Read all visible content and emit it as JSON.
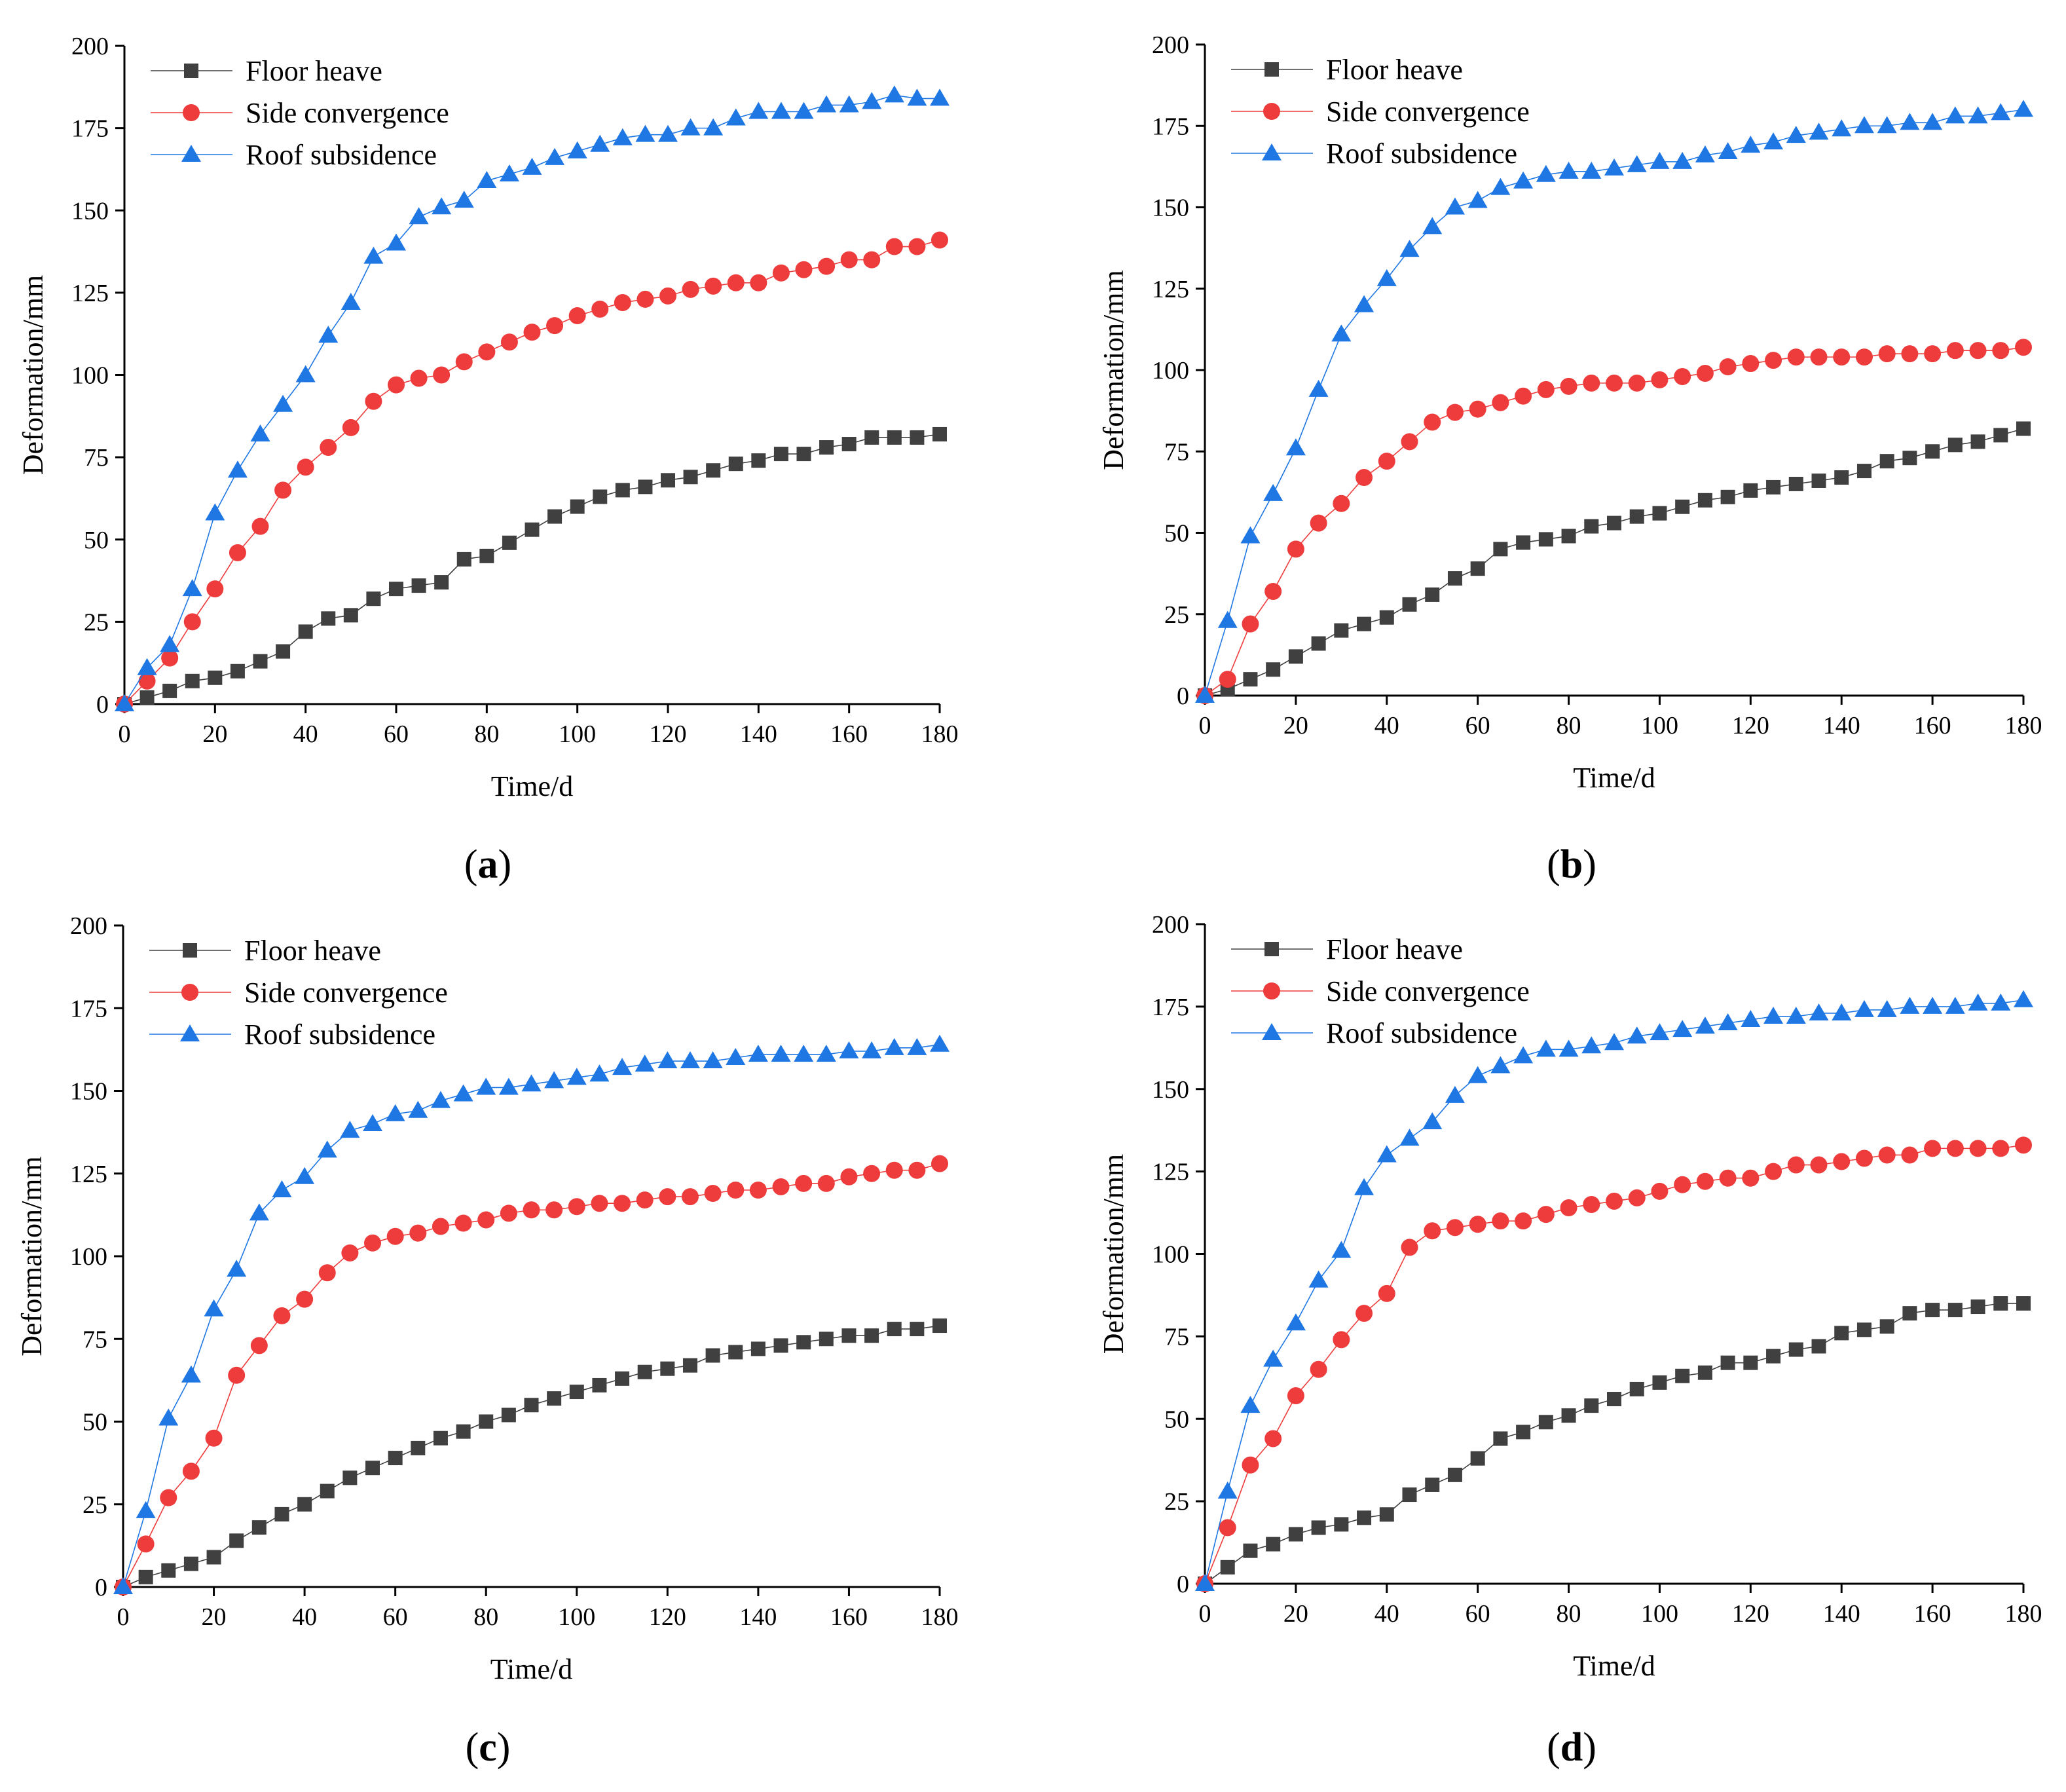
{
  "chart_data": [
    {
      "type": "line",
      "panel_label": "a",
      "xlabel": "Time/d",
      "ylabel": "Deformation/mm",
      "xlim": [
        0,
        180
      ],
      "ylim": [
        0,
        200
      ],
      "xticks": [
        0,
        20,
        40,
        60,
        80,
        100,
        120,
        140,
        160,
        180
      ],
      "yticks": [
        0,
        25,
        50,
        75,
        100,
        125,
        150,
        175,
        200
      ],
      "legend_position": "top-left",
      "x": [
        0,
        5,
        10,
        15,
        20,
        25,
        30,
        35,
        40,
        45,
        50,
        55,
        60,
        65,
        70,
        75,
        80,
        85,
        90,
        95,
        100,
        105,
        110,
        115,
        120,
        125,
        130,
        135,
        140,
        145,
        150,
        155,
        160,
        165,
        170,
        175,
        180
      ],
      "series": [
        {
          "name": "Floor heave",
          "marker": "square",
          "color": "#404040",
          "values": [
            0,
            2,
            4,
            7,
            8,
            10,
            13,
            16,
            22,
            26,
            27,
            32,
            35,
            36,
            37,
            44,
            45,
            49,
            53,
            57,
            60,
            63,
            65,
            66,
            68,
            69,
            71,
            73,
            74,
            76,
            76,
            78,
            79,
            81,
            81,
            81,
            82
          ]
        },
        {
          "name": "Side convergence",
          "marker": "circle",
          "color": "#ee3b3b",
          "values": [
            0,
            7,
            14,
            25,
            35,
            46,
            54,
            65,
            72,
            78,
            84,
            92,
            97,
            99,
            100,
            104,
            107,
            110,
            113,
            115,
            118,
            120,
            122,
            123,
            124,
            126,
            127,
            128,
            128,
            131,
            132,
            133,
            135,
            135,
            139,
            139,
            141
          ]
        },
        {
          "name": "Roof subsidence",
          "marker": "triangle",
          "color": "#1f77e4",
          "values": [
            0,
            11,
            18,
            35,
            58,
            71,
            82,
            91,
            100,
            112,
            122,
            136,
            140,
            148,
            151,
            153,
            159,
            161,
            163,
            166,
            168,
            170,
            172,
            173,
            173,
            175,
            175,
            178,
            180,
            180,
            180,
            182,
            182,
            183,
            185,
            184,
            184
          ]
        }
      ]
    },
    {
      "type": "line",
      "panel_label": "b",
      "xlabel": "Time/d",
      "ylabel": "Deformation/mm",
      "xlim": [
        0,
        180
      ],
      "ylim": [
        0,
        200
      ],
      "xticks": [
        0,
        20,
        40,
        60,
        80,
        100,
        120,
        140,
        160,
        180
      ],
      "yticks": [
        0,
        25,
        50,
        75,
        100,
        125,
        150,
        175,
        200
      ],
      "legend_position": "top-left",
      "x": [
        0,
        5,
        10,
        15,
        20,
        25,
        30,
        35,
        40,
        45,
        50,
        55,
        60,
        65,
        70,
        75,
        80,
        85,
        90,
        95,
        100,
        105,
        110,
        115,
        120,
        125,
        130,
        135,
        140,
        145,
        150,
        155,
        160,
        165,
        170,
        175,
        180
      ],
      "series": [
        {
          "name": "Floor heave",
          "marker": "square",
          "color": "#404040",
          "values": [
            0,
            2,
            5,
            8,
            12,
            16,
            20,
            22,
            24,
            28,
            31,
            36,
            39,
            45,
            47,
            48,
            49,
            52,
            53,
            55,
            56,
            58,
            60,
            61,
            63,
            64,
            65,
            66,
            67,
            69,
            72,
            73,
            75,
            77,
            78,
            80,
            82
          ]
        },
        {
          "name": "Side convergence",
          "marker": "circle",
          "color": "#ee3b3b",
          "values": [
            0,
            5,
            22,
            32,
            45,
            53,
            59,
            67,
            72,
            78,
            84,
            87,
            88,
            90,
            92,
            94,
            95,
            96,
            96,
            96,
            97,
            98,
            99,
            101,
            102,
            103,
            104,
            104,
            104,
            104,
            105,
            105,
            105,
            106,
            106,
            106,
            107
          ]
        },
        {
          "name": "Roof subsidence",
          "marker": "triangle",
          "color": "#1f77e4",
          "values": [
            0,
            23,
            49,
            62,
            76,
            94,
            111,
            120,
            128,
            137,
            144,
            150,
            152,
            156,
            158,
            160,
            161,
            161,
            162,
            163,
            164,
            164,
            166,
            167,
            169,
            170,
            172,
            173,
            174,
            175,
            175,
            176,
            176,
            178,
            178,
            179,
            180
          ]
        }
      ]
    },
    {
      "type": "line",
      "panel_label": "c",
      "xlabel": "Time/d",
      "ylabel": "Deformation/mm",
      "xlim": [
        0,
        180
      ],
      "ylim": [
        0,
        200
      ],
      "xticks": [
        0,
        20,
        40,
        60,
        80,
        100,
        120,
        140,
        160,
        180
      ],
      "yticks": [
        0,
        25,
        50,
        75,
        100,
        125,
        150,
        175,
        200
      ],
      "legend_position": "top-left",
      "x": [
        0,
        5,
        10,
        15,
        20,
        25,
        30,
        35,
        40,
        45,
        50,
        55,
        60,
        65,
        70,
        75,
        80,
        85,
        90,
        95,
        100,
        105,
        110,
        115,
        120,
        125,
        130,
        135,
        140,
        145,
        150,
        155,
        160,
        165,
        170,
        175,
        180
      ],
      "series": [
        {
          "name": "Floor heave",
          "marker": "square",
          "color": "#404040",
          "values": [
            0,
            3,
            5,
            7,
            9,
            14,
            18,
            22,
            25,
            29,
            33,
            36,
            39,
            42,
            45,
            47,
            50,
            52,
            55,
            57,
            59,
            61,
            63,
            65,
            66,
            67,
            70,
            71,
            72,
            73,
            74,
            75,
            76,
            76,
            78,
            78,
            79
          ]
        },
        {
          "name": "Side convergence",
          "marker": "circle",
          "color": "#ee3b3b",
          "values": [
            0,
            13,
            27,
            35,
            45,
            64,
            73,
            82,
            87,
            95,
            101,
            104,
            106,
            107,
            109,
            110,
            111,
            113,
            114,
            114,
            115,
            116,
            116,
            117,
            118,
            118,
            119,
            120,
            120,
            121,
            122,
            122,
            124,
            125,
            126,
            126,
            128
          ]
        },
        {
          "name": "Roof subsidence",
          "marker": "triangle",
          "color": "#1f77e4",
          "values": [
            0,
            23,
            51,
            64,
            84,
            96,
            113,
            120,
            124,
            132,
            138,
            140,
            143,
            144,
            147,
            149,
            151,
            151,
            152,
            153,
            154,
            155,
            157,
            158,
            159,
            159,
            159,
            160,
            161,
            161,
            161,
            161,
            162,
            162,
            163,
            163,
            164
          ]
        }
      ]
    },
    {
      "type": "line",
      "panel_label": "d",
      "xlabel": "Time/d",
      "ylabel": "Deformation/mm",
      "xlim": [
        0,
        180
      ],
      "ylim": [
        0,
        200
      ],
      "xticks": [
        0,
        20,
        40,
        60,
        80,
        100,
        120,
        140,
        160,
        180
      ],
      "yticks": [
        0,
        25,
        50,
        75,
        100,
        125,
        150,
        175,
        200
      ],
      "legend_position": "top-left",
      "x": [
        0,
        5,
        10,
        15,
        20,
        25,
        30,
        35,
        40,
        45,
        50,
        55,
        60,
        65,
        70,
        75,
        80,
        85,
        90,
        95,
        100,
        105,
        110,
        115,
        120,
        125,
        130,
        135,
        140,
        145,
        150,
        155,
        160,
        165,
        170,
        175,
        180
      ],
      "series": [
        {
          "name": "Floor heave",
          "marker": "square",
          "color": "#404040",
          "values": [
            0,
            5,
            10,
            12,
            15,
            17,
            18,
            20,
            21,
            27,
            30,
            33,
            38,
            44,
            46,
            49,
            51,
            54,
            56,
            59,
            61,
            63,
            64,
            67,
            67,
            69,
            71,
            72,
            76,
            77,
            78,
            82,
            83,
            83,
            84,
            85,
            85
          ]
        },
        {
          "name": "Side convergence",
          "marker": "circle",
          "color": "#ee3b3b",
          "values": [
            0,
            17,
            36,
            44,
            57,
            65,
            74,
            82,
            88,
            102,
            107,
            108,
            109,
            110,
            110,
            112,
            114,
            115,
            116,
            117,
            119,
            121,
            122,
            123,
            123,
            125,
            127,
            127,
            128,
            129,
            130,
            130,
            132,
            132,
            132,
            132,
            133
          ]
        },
        {
          "name": "Roof subsidence",
          "marker": "triangle",
          "color": "#1f77e4",
          "values": [
            0,
            28,
            54,
            68,
            79,
            92,
            101,
            120,
            130,
            135,
            140,
            148,
            154,
            157,
            160,
            162,
            162,
            163,
            164,
            166,
            167,
            168,
            169,
            170,
            171,
            172,
            172,
            173,
            173,
            174,
            174,
            175,
            175,
            175,
            176,
            176,
            177
          ]
        }
      ]
    }
  ]
}
